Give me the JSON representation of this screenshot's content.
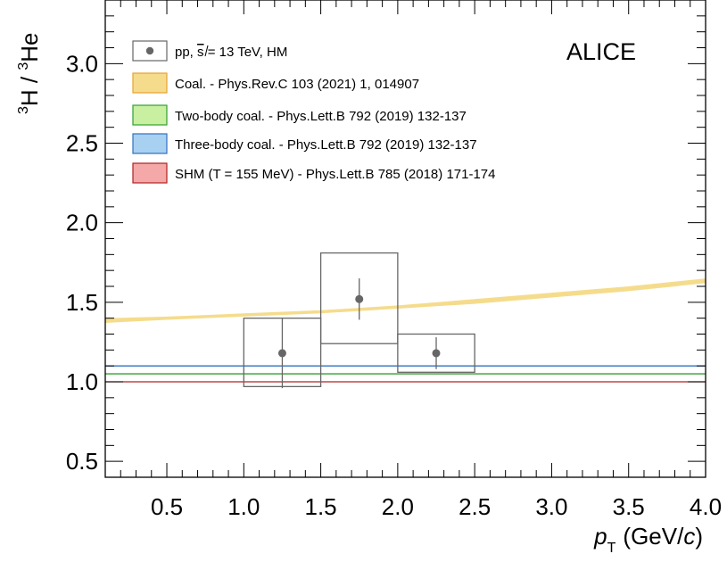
{
  "chart_data": {
    "type": "scatter",
    "experiment_label": "ALICE",
    "xlabel_main": "p",
    "xlabel_sub": "T",
    "xlabel_unit_open": "(GeV/",
    "xlabel_unit_c": "c",
    "xlabel_unit_close": ")",
    "ylabel_sup1": "3",
    "ylabel_h": "H / ",
    "ylabel_sup2": "3",
    "ylabel_he": "He",
    "xlim": [
      0.1,
      4.0
    ],
    "ylim": [
      0.4,
      3.4
    ],
    "x_ticks": [
      "0.5",
      "1.0",
      "1.5",
      "2.0",
      "2.5",
      "3.0",
      "3.5",
      "4.0"
    ],
    "y_ticks": [
      "0.5",
      "1.0",
      "1.5",
      "2.0",
      "2.5",
      "3.0"
    ],
    "data": {
      "name_prefix": "pp, ",
      "name_sqrt": "s",
      "name_suffix": " = 13 TeV, HM",
      "color": "#666666",
      "points": [
        {
          "x": 1.25,
          "y": 1.18,
          "stat_err": 0.22,
          "x_low": 1.0,
          "x_high": 1.5,
          "sys_low": 0.97,
          "sys_high": 1.4
        },
        {
          "x": 1.75,
          "y": 1.52,
          "stat_err": 0.13,
          "x_low": 1.5,
          "x_high": 2.0,
          "sys_low": 1.24,
          "sys_high": 1.81
        },
        {
          "x": 2.25,
          "y": 1.18,
          "stat_err": 0.1,
          "x_low": 2.0,
          "x_high": 2.5,
          "sys_low": 1.06,
          "sys_high": 1.3
        }
      ]
    },
    "models": [
      {
        "name": "Coal. - Phys.Rev.C 103 (2021) 1, 014907",
        "fill": "#f5dc8c",
        "line": "#e8a030",
        "curve_x": [
          0.1,
          0.5,
          1.0,
          1.5,
          2.0,
          2.5,
          3.0,
          3.5,
          4.0
        ],
        "curve_lo": [
          1.37,
          1.39,
          1.41,
          1.43,
          1.46,
          1.49,
          1.53,
          1.57,
          1.62
        ],
        "curve_hi": [
          1.4,
          1.41,
          1.43,
          1.45,
          1.48,
          1.52,
          1.56,
          1.6,
          1.65
        ]
      },
      {
        "name": "Two-body coal. - Phys.Lett.B 792 (2019) 132-137",
        "fill": "#c8f0a0",
        "line": "#30a030",
        "value": 1.05
      },
      {
        "name": "Three-body coal. - Phys.Lett.B 792 (2019) 132-137",
        "fill": "#a8d0f0",
        "line": "#3070c0",
        "value": 1.1
      },
      {
        "name": "SHM (T = 155 MeV) - Phys.Lett.B 785 (2018) 171-174",
        "fill": "#f4a8a8",
        "line": "#b02020",
        "value": 1.0
      }
    ]
  }
}
